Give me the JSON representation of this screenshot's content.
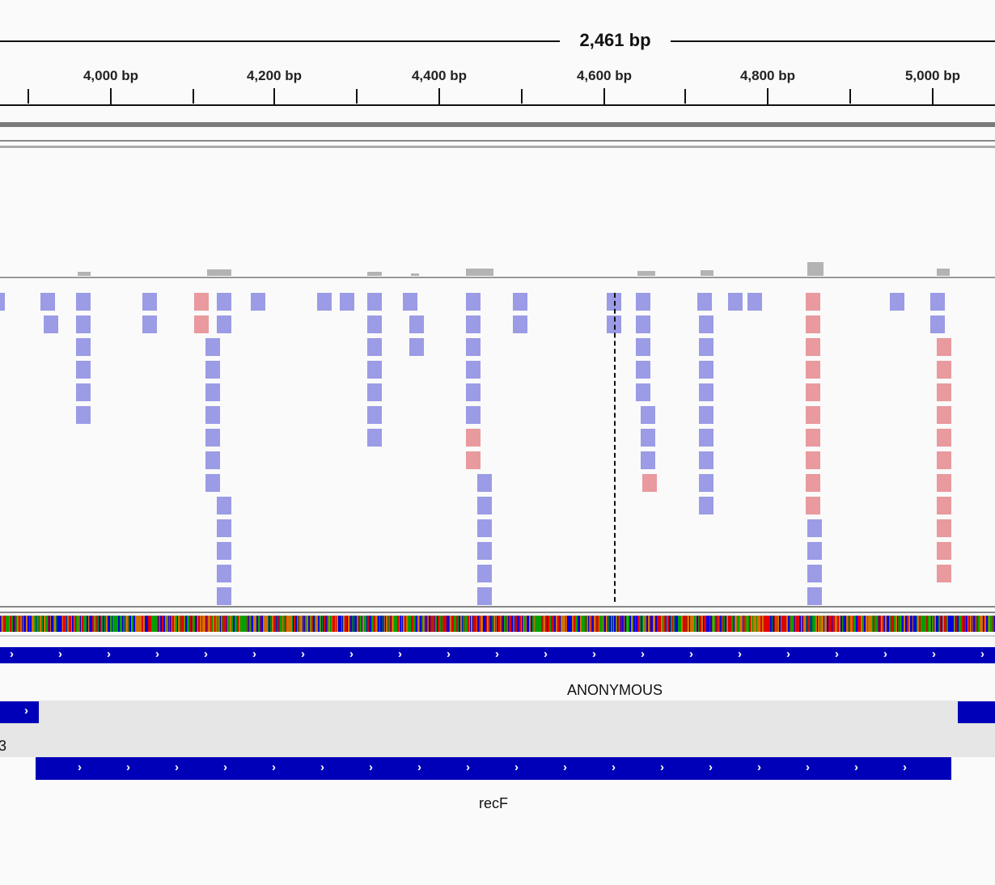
{
  "ruler": {
    "span_label": "2,461 bp",
    "ticks": [
      {
        "label": "4,000 bp",
        "bp": 4000
      },
      {
        "label": "4,200 bp",
        "bp": 4200
      },
      {
        "label": "4,400 bp",
        "bp": 4400
      },
      {
        "label": "4,600 bp",
        "bp": 4600
      },
      {
        "label": "4,800 bp",
        "bp": 4800
      },
      {
        "label": "5,000 bp",
        "bp": 5000
      }
    ]
  },
  "tracks": {
    "anonymous": {
      "label": "ANONYMOUS"
    },
    "gene_left": {
      "label": "3"
    },
    "recf": {
      "label": "recF"
    }
  },
  "colors": {
    "forward_read": "#9b9be6",
    "reverse_read": "#e89a9e",
    "feature": "#0000b8",
    "coverage": "#b3b3b3",
    "base_A": "#00a000",
    "base_C": "#0000e0",
    "base_G": "#d17100",
    "base_T": "#e00000"
  }
}
